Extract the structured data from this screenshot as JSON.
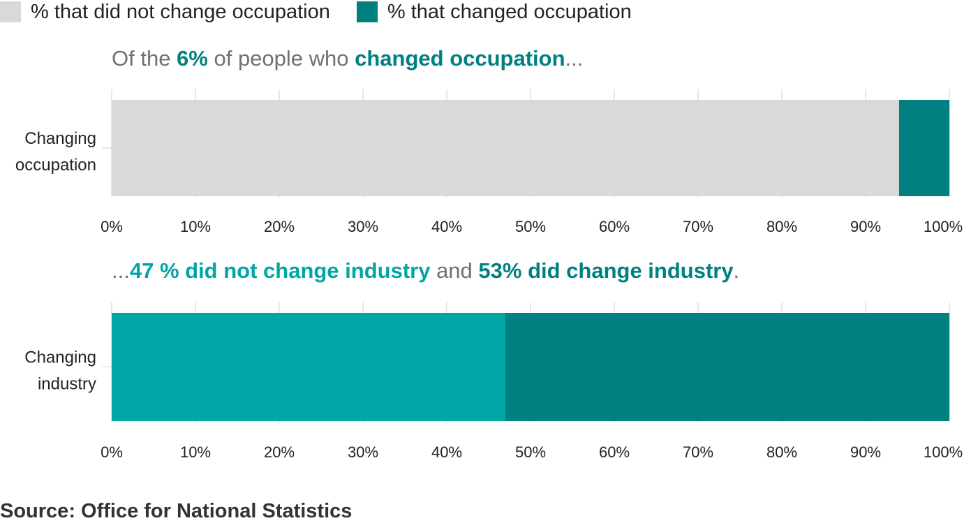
{
  "legend": [
    {
      "label": "% that did not change occupation",
      "color": "#d9d9d9"
    },
    {
      "label": "% that changed occupation",
      "color": "#008080"
    }
  ],
  "titles": {
    "top": [
      {
        "text": "Of the ",
        "bold": false,
        "color": "#707070"
      },
      {
        "text": "6%",
        "bold": true,
        "color": "#008080"
      },
      {
        "text": " of people who ",
        "bold": false,
        "color": "#707070"
      },
      {
        "text": "changed occupation",
        "bold": true,
        "color": "#008080"
      },
      {
        "text": "...",
        "bold": false,
        "color": "#707070"
      }
    ],
    "bottom": [
      {
        "text": "...",
        "bold": false,
        "color": "#707070"
      },
      {
        "text": "47 % did not change industry",
        "bold": true,
        "color": "#00a6a6"
      },
      {
        "text": " and ",
        "bold": false,
        "color": "#707070"
      },
      {
        "text": "53% did change industry",
        "bold": true,
        "color": "#008080"
      },
      {
        "text": ".",
        "bold": false,
        "color": "#707070"
      }
    ]
  },
  "source": "Source: Office for National Statistics",
  "chart_data": [
    {
      "type": "bar",
      "orientation": "horizontal",
      "stacked": true,
      "categories": [
        "Changing occupation"
      ],
      "category_label_lines": [
        "Changing",
        "occupation"
      ],
      "series": [
        {
          "name": "% that did not change occupation",
          "values": [
            94
          ],
          "color": "#d9d9d9"
        },
        {
          "name": "% that changed occupation",
          "values": [
            6
          ],
          "color": "#008080"
        }
      ],
      "xlim": [
        0,
        100
      ],
      "xticks": [
        "0%",
        "10%",
        "20%",
        "30%",
        "40%",
        "50%",
        "60%",
        "70%",
        "80%",
        "90%",
        "100%"
      ],
      "grid": true,
      "legend": "top-left"
    },
    {
      "type": "bar",
      "orientation": "horizontal",
      "stacked": true,
      "categories": [
        "Changing industry"
      ],
      "category_label_lines": [
        "Changing",
        "industry"
      ],
      "series": [
        {
          "values": [
            47
          ],
          "color": "#00a6a6"
        },
        {
          "values": [
            53
          ],
          "color": "#008080"
        }
      ],
      "xlim": [
        0,
        100
      ],
      "xticks": [
        "0%",
        "10%",
        "20%",
        "30%",
        "40%",
        "50%",
        "60%",
        "70%",
        "80%",
        "90%",
        "100%"
      ],
      "grid": true
    }
  ]
}
